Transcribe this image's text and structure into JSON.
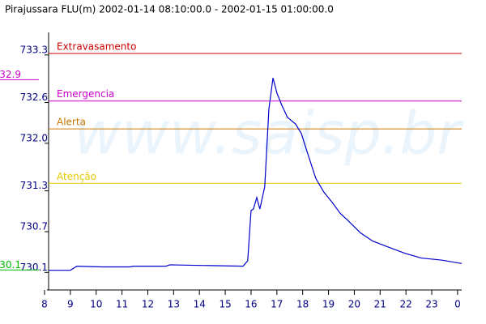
{
  "chart_data": {
    "type": "line",
    "title": "Pirajussara FLU(m) 2002-01-14 08:10:00.0 - 2002-01-15 01:00:00.0",
    "watermark": "www.saisp.br",
    "x": [
      8.16,
      9.0,
      9.25,
      10.2,
      11.3,
      11.45,
      12.7,
      12.86,
      15.69,
      15.87,
      16.0,
      16.09,
      16.22,
      16.34,
      16.53,
      16.69,
      16.85,
      17.0,
      17.19,
      17.41,
      17.73,
      17.95,
      18.2,
      18.51,
      18.82,
      19.14,
      19.45,
      19.76,
      20.24,
      20.71,
      21.33,
      21.96,
      22.59,
      23.37,
      24.16
    ],
    "values": [
      730.06,
      730.06,
      730.12,
      730.11,
      730.11,
      730.12,
      730.12,
      730.14,
      730.12,
      730.2,
      730.94,
      730.96,
      731.13,
      730.96,
      731.29,
      732.43,
      732.89,
      732.67,
      732.49,
      732.31,
      732.21,
      732.07,
      731.77,
      731.41,
      731.21,
      731.06,
      730.9,
      730.79,
      730.61,
      730.49,
      730.4,
      730.31,
      730.24,
      730.21,
      730.16
    ],
    "color": "#0000cc",
    "xlim": [
      8,
      24.16
    ],
    "xticks": [
      8,
      9,
      10,
      11,
      12,
      13,
      14,
      15,
      16,
      17,
      18,
      19,
      20,
      21,
      22,
      23,
      {
        "value": 24,
        "label": "0"
      }
    ],
    "ylim": [
      729.77,
      733.56
    ],
    "yticks": [
      730.1,
      730.7,
      731.3,
      {
        "value": 732,
        "label": "732.0"
      },
      732.6,
      733.3
    ],
    "thresholds": [
      {
        "label": "Extravasamento",
        "value": 733.25,
        "color": "#cc0000"
      },
      {
        "label": "Emergencia",
        "value": 732.55,
        "color": "#cc00cc"
      },
      {
        "label": "Alerta",
        "value": 732.14,
        "color": "#cc7700"
      },
      {
        "label": "Atenção",
        "value": 731.34,
        "color": "#e6c800"
      }
    ],
    "markers": [
      {
        "label": "732.9",
        "value": 732.9,
        "color": "#cc00cc"
      },
      {
        "label": "730.1",
        "value": 730.1,
        "color": "#00bb00"
      }
    ]
  }
}
